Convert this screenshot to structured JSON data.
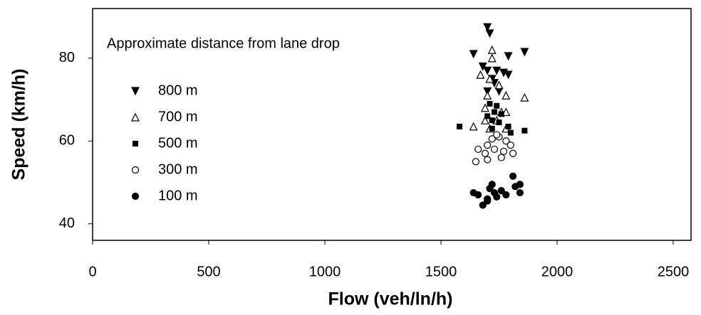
{
  "chart_data": {
    "type": "scatter",
    "xlabel": "Flow  (veh/ln/h)",
    "ylabel": "Speed (km/h)",
    "legend_title": "Approximate distance from lane drop",
    "legend": "upper-left",
    "xlim": [
      0,
      2500
    ],
    "xticks": [
      0,
      500,
      1000,
      1500,
      2000,
      2500
    ],
    "ylim": [
      36,
      92
    ],
    "yticks": [
      40,
      60,
      80
    ],
    "series": [
      {
        "name": "800 m",
        "color": "#000000",
        "marker": "triangle-down",
        "x": [
          1700,
          1710,
          1640,
          1790,
          1860,
          1680,
          1700,
          1740,
          1770,
          1790,
          1720,
          1700,
          1750,
          1730
        ],
        "values": [
          87.5,
          86,
          81,
          80.5,
          81.5,
          78,
          77,
          77,
          76.5,
          76,
          75,
          72,
          72,
          74
        ]
      },
      {
        "name": "700 m",
        "color": "#000000",
        "marker": "triangle-up-open",
        "x": [
          1720,
          1720,
          1670,
          1710,
          1750,
          1700,
          1780,
          1860,
          1690,
          1760,
          1780,
          1690,
          1740,
          1640,
          1710,
          1780
        ],
        "values": [
          82,
          80,
          76,
          75,
          73.5,
          71,
          71,
          70.5,
          68,
          67,
          67,
          65,
          65,
          63.5,
          63,
          63
        ]
      },
      {
        "name": "500 m",
        "color": "#000000",
        "marker": "square",
        "x": [
          1580,
          1860,
          1710,
          1740,
          1730,
          1760,
          1700,
          1720,
          1750,
          1790,
          1720,
          1800
        ],
        "values": [
          63.5,
          62.5,
          69,
          68.5,
          67,
          66.5,
          66,
          65,
          64.5,
          63.5,
          63,
          62
        ]
      },
      {
        "name": "300 m",
        "color": "#000000",
        "marker": "circle-open",
        "x": [
          1650,
          1660,
          1700,
          1720,
          1750,
          1780,
          1800,
          1690,
          1730,
          1770,
          1810,
          1700,
          1760,
          1740
        ],
        "values": [
          55,
          58,
          59,
          60.5,
          61,
          60,
          59,
          57,
          58,
          57.5,
          57,
          55.5,
          56,
          61.5
        ]
      },
      {
        "name": "100 m",
        "color": "#000000",
        "marker": "circle",
        "x": [
          1640,
          1660,
          1680,
          1700,
          1710,
          1720,
          1730,
          1740,
          1760,
          1780,
          1810,
          1820,
          1840,
          1840,
          1700
        ],
        "values": [
          47.5,
          47,
          44.5,
          46,
          48.5,
          49.5,
          47.5,
          46.5,
          48,
          47,
          51.5,
          49,
          49.5,
          47.5,
          45.5
        ]
      }
    ]
  }
}
